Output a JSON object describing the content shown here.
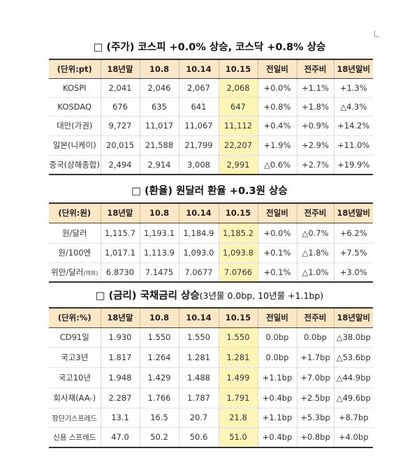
{
  "sections": [
    {
      "title": "□ (주가) 코스피 +0.0% 상승, 코스닥 +0.8% 상승",
      "note": "",
      "headers": [
        "(단위:pt)",
        "18년말",
        "10.8",
        "10.14",
        "10.15",
        "전일비",
        "전주비",
        "18년말비"
      ],
      "rows": [
        [
          "KOSPI",
          "2,041",
          "2,046",
          "2,067",
          "2,068",
          "+0.0%",
          "+1.1%",
          "+1.3%"
        ],
        [
          "KOSDAQ",
          "676",
          "635",
          "641",
          "647",
          "+0.8%",
          "+1.8%",
          "△4.3%"
        ],
        [
          "대만(가권)",
          "9,727",
          "11,017",
          "11,067",
          "11,112",
          "+0.4%",
          "+0.9%",
          "+14.2%"
        ],
        [
          "일본(니케이)",
          "20,015",
          "21,588",
          "21,799",
          "22,207",
          "+1.9%",
          "+2.9%",
          "+11.0%"
        ],
        [
          "중국(상해종합)",
          "2,494",
          "2,914",
          "3,008",
          "2,991",
          "△0.6%",
          "+2.7%",
          "+19.9%"
        ]
      ]
    },
    {
      "title": "□ (환율) 원달러 환율 +0.3원 상승",
      "note": "",
      "headers": [
        "(단위:원)",
        "18년말",
        "10.8",
        "10.14",
        "10.15",
        "전일비",
        "전주비",
        "18년말비"
      ],
      "rows": [
        [
          "원/달러",
          "1,115.7",
          "1,193.1",
          "1,184.9",
          "1,185.2",
          "+0.0%",
          "△0.7%",
          "+6.2%"
        ],
        [
          "원/100엔",
          "1,017.1",
          "1,113.9",
          "1,093.0",
          "1,093.8",
          "+0.1%",
          "△1.8%",
          "+7.5%"
        ],
        [
          "위안/달러",
          "6.8730",
          "7.1475",
          "7.0677",
          "7.0766",
          "+0.1%",
          "△1.0%",
          "+3.0%"
        ]
      ],
      "row_suffix": {
        "2": "(역외)"
      }
    },
    {
      "title": "□ (금리) 국채금리 상승",
      "note": "(3년물 0.0bp, 10년물 +1.1bp)",
      "headers": [
        "(단위:%)",
        "18년말",
        "10.8",
        "10.14",
        "10.15",
        "전일비",
        "전주비",
        "18년말비"
      ],
      "rows": [
        [
          "CD91일",
          "1.930",
          "1.550",
          "1.550",
          "1.550",
          "0.0bp",
          "0.0bp",
          "△38.0bp"
        ],
        [
          "국고3년",
          "1.817",
          "1.264",
          "1.281",
          "1.281",
          "0.0bp",
          "+1.7bp",
          "△53.6bp"
        ],
        [
          "국고10년",
          "1.948",
          "1.429",
          "1.488",
          "1.499",
          "+1.1bp",
          "+7.0bp",
          "△44.9bp"
        ],
        [
          "회사채(AA-)",
          "2.287",
          "1.766",
          "1.787",
          "1.791",
          "+0.4bp",
          "+2.5bp",
          "△49.6bp"
        ],
        [
          "장단기스프레드",
          "13.1",
          "16.5",
          "20.7",
          "21.8",
          "+1.1bp",
          "+5.3bp",
          "+8.7bp"
        ],
        [
          "신용 스프레드",
          "47.0",
          "50.2",
          "50.6",
          "51.0",
          "+0.4bp",
          "+0.8bp",
          "+4.0bp"
        ]
      ]
    }
  ],
  "colors": {
    "header_bg": "#fbe6c6",
    "highlight_bg": "#fdf5b8"
  }
}
